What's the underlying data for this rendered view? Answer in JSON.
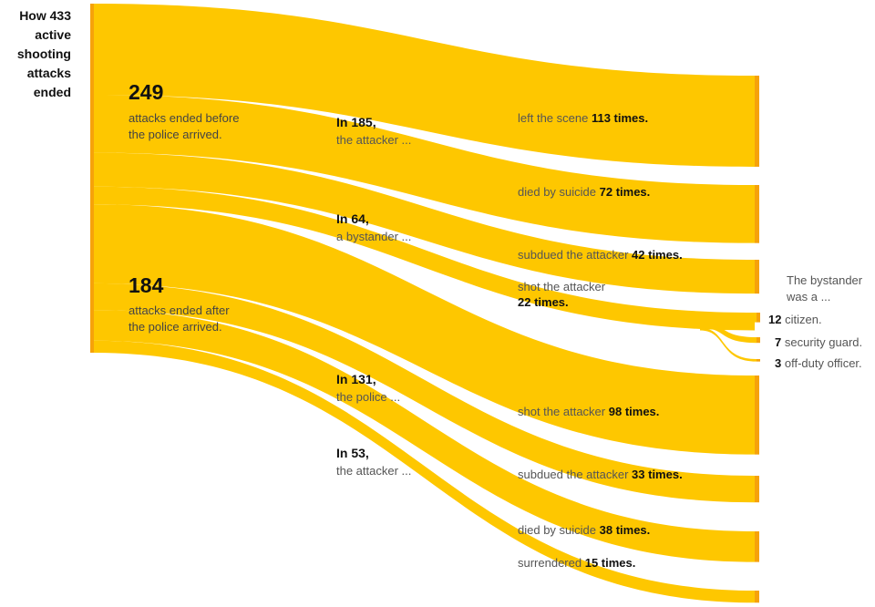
{
  "title": "How 433 active shooting attacks ended",
  "chart_data": {
    "type": "sankey",
    "title": "How 433 active shooting attacks ended",
    "total": 433,
    "groups": [
      {
        "value": "249",
        "label": "attacks ended before the police arrived."
      },
      {
        "value": "184",
        "label": "attacks ended after the police arrived."
      }
    ],
    "branches": [
      {
        "head": "In 185,",
        "sub": "the attacker ...",
        "value": 185,
        "group": 0
      },
      {
        "head": "In 64,",
        "sub": "a bystander ...",
        "value": 64,
        "group": 0
      },
      {
        "head": "In 131,",
        "sub": "the police ...",
        "value": 131,
        "group": 1
      },
      {
        "head": "In 53,",
        "sub": "the attacker ...",
        "value": 53,
        "group": 1
      }
    ],
    "outcomes": [
      {
        "text": "left the scene",
        "count": "113 times.",
        "value": 113,
        "branch": 0
      },
      {
        "text": "died by suicide",
        "count": "72 times.",
        "value": 72,
        "branch": 0
      },
      {
        "text": "subdued the attacker",
        "count": "42 times.",
        "value": 42,
        "branch": 1
      },
      {
        "text": "shot the attacker",
        "count": "22 times.",
        "value": 22,
        "branch": 1
      },
      {
        "text": "shot the attacker",
        "count": "98 times.",
        "value": 98,
        "branch": 2
      },
      {
        "text": "subdued the attacker",
        "count": "33 times.",
        "value": 33,
        "branch": 2
      },
      {
        "text": "died by suicide",
        "count": "38 times.",
        "value": 38,
        "branch": 3
      },
      {
        "text": "surrendered",
        "count": "15 times.",
        "value": 15,
        "branch": 3
      }
    ],
    "bystander_breakdown": {
      "heading": "The bystander was a ...",
      "items": [
        {
          "count": "12",
          "label": "citizen.",
          "value": 12
        },
        {
          "count": "7",
          "label": "security guard.",
          "value": 7
        },
        {
          "count": "3",
          "label": "off-duty officer.",
          "value": 3
        }
      ]
    }
  },
  "colors": {
    "flow": "#fec700",
    "node": "#f6a20a"
  }
}
